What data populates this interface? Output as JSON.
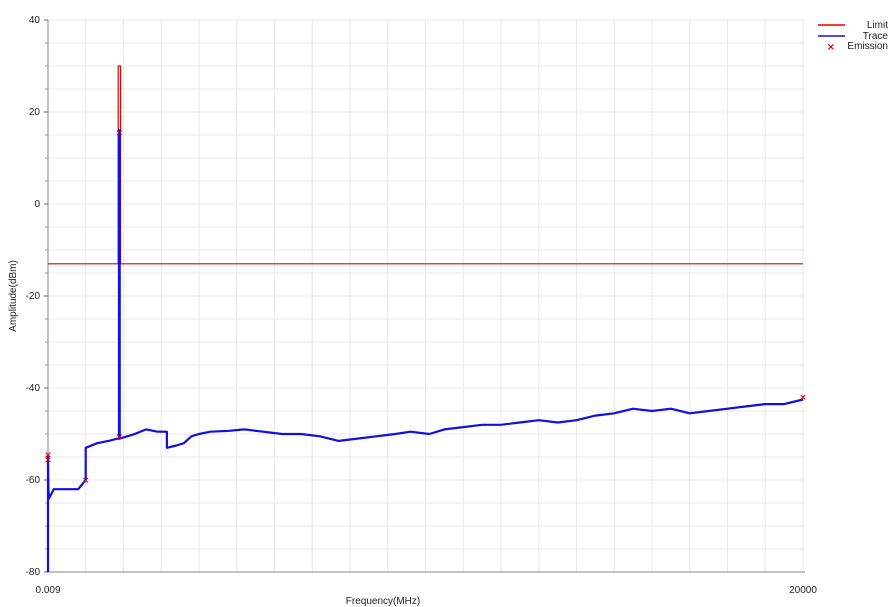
{
  "chart_data": {
    "type": "line",
    "title": "",
    "xlabel": "Frequency(MHz)",
    "ylabel": "Amplitude(dBm)",
    "xlim": [
      0.009,
      20000
    ],
    "ylim": [
      -80,
      40
    ],
    "x_tick_labels": [
      "0.009",
      "20000"
    ],
    "y_ticks": [
      40,
      20,
      0,
      -20,
      -40,
      -60,
      -80
    ],
    "grid": true,
    "legend_position": "top-right",
    "legend": [
      "Limit",
      "Trace",
      "Emission"
    ],
    "colors": {
      "limit": "#e00000",
      "trace": "#1010e0",
      "emission": "#e00000",
      "grid": "#e8e8e8"
    },
    "series": [
      {
        "name": "Limit",
        "kind": "line",
        "color": "#e00000",
        "points": [
          [
            0.009,
            -13
          ],
          [
            1860,
            -13
          ],
          [
            1860,
            30
          ],
          [
            1920,
            30
          ],
          [
            1920,
            -13
          ],
          [
            20000,
            -13
          ]
        ]
      },
      {
        "name": "Trace",
        "kind": "line",
        "color": "#1010e0",
        "points": [
          [
            0.009,
            -80
          ],
          [
            0.009,
            -55
          ],
          [
            10,
            -62
          ],
          [
            30,
            -64
          ],
          [
            150,
            -62
          ],
          [
            800,
            -62
          ],
          [
            1000,
            -60
          ],
          [
            1000,
            -53
          ],
          [
            1300,
            -52
          ],
          [
            1600,
            -51.5
          ],
          [
            1850,
            -51
          ],
          [
            1880,
            -51
          ],
          [
            1880,
            16
          ],
          [
            1900,
            16
          ],
          [
            1900,
            -51
          ],
          [
            2100,
            -50.5
          ],
          [
            2300,
            -50
          ],
          [
            2600,
            -49
          ],
          [
            2900,
            -49.5
          ],
          [
            3150,
            -49.5
          ],
          [
            3150,
            -53
          ],
          [
            3400,
            -52.5
          ],
          [
            3600,
            -52
          ],
          [
            3800,
            -50.5
          ],
          [
            4000,
            -50
          ],
          [
            4300,
            -49.5
          ],
          [
            4800,
            -49.3
          ],
          [
            5200,
            -49
          ],
          [
            5700,
            -49.5
          ],
          [
            6200,
            -50
          ],
          [
            6700,
            -50
          ],
          [
            7200,
            -50.5
          ],
          [
            7700,
            -51.5
          ],
          [
            8200,
            -51
          ],
          [
            8700,
            -50.5
          ],
          [
            9200,
            -50
          ],
          [
            9600,
            -49.5
          ],
          [
            10100,
            -50
          ],
          [
            10500,
            -49
          ],
          [
            11000,
            -48.5
          ],
          [
            11500,
            -48
          ],
          [
            12000,
            -48
          ],
          [
            12500,
            -47.5
          ],
          [
            13000,
            -47
          ],
          [
            13500,
            -47.5
          ],
          [
            14000,
            -47
          ],
          [
            14500,
            -46
          ],
          [
            15000,
            -45.5
          ],
          [
            15500,
            -44.5
          ],
          [
            16000,
            -45
          ],
          [
            16500,
            -44.5
          ],
          [
            17000,
            -45.5
          ],
          [
            17500,
            -45
          ],
          [
            18000,
            -44.5
          ],
          [
            18500,
            -44
          ],
          [
            19000,
            -43.5
          ],
          [
            19500,
            -43.5
          ],
          [
            20000,
            -42.5
          ]
        ]
      },
      {
        "name": "Emission",
        "kind": "marker",
        "color": "#e00000",
        "points": [
          [
            0.009,
            -54.5
          ],
          [
            0.009,
            -55.5
          ],
          [
            1000,
            -60
          ],
          [
            1890,
            15.5
          ],
          [
            1890,
            -50.5
          ],
          [
            20000,
            -42
          ]
        ]
      }
    ]
  }
}
